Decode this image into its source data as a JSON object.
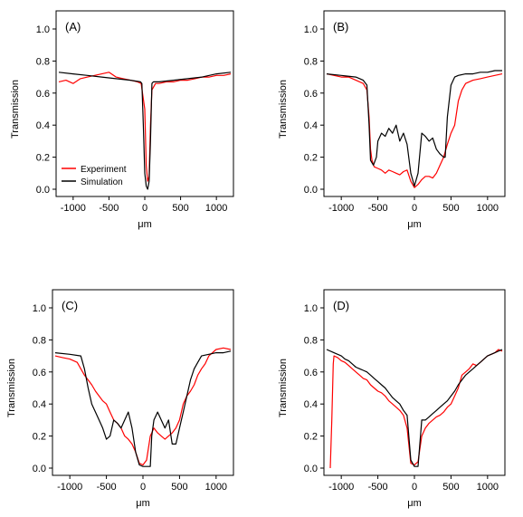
{
  "colors": {
    "experiment": "#ff0000",
    "simulation": "#000000",
    "axis": "#000000",
    "background": "#ffffff"
  },
  "legend": {
    "placement": "bottom-left of panel A",
    "entries": [
      "Experiment",
      "Simulation"
    ]
  },
  "chart_data": [
    {
      "type": "line",
      "panel_label": "(A)",
      "xlabel": "μm",
      "ylabel": "Transmission",
      "xlim": [
        -1200,
        1200
      ],
      "ylim": [
        0.0,
        1.0
      ],
      "xticks": [
        -1000,
        -500,
        0,
        500,
        1000
      ],
      "yticks": [
        0.0,
        0.2,
        0.4,
        0.6,
        0.8,
        1.0
      ],
      "xtick_labels": [
        "-1000",
        "-500",
        "0",
        "500",
        "1000"
      ],
      "ytick_labels": [
        "0.0",
        "0.2",
        "0.4",
        "0.6",
        "0.8",
        "1.0"
      ],
      "grid": false,
      "series": [
        {
          "name": "Experiment",
          "color": "#ff0000",
          "x": [
            -1200,
            -1100,
            -1000,
            -900,
            -800,
            -700,
            -600,
            -500,
            -400,
            -300,
            -200,
            -100,
            -50,
            0,
            20,
            40,
            60,
            80,
            100,
            150,
            200,
            300,
            400,
            500,
            600,
            700,
            800,
            900,
            1000,
            1100,
            1200
          ],
          "y": [
            0.67,
            0.68,
            0.66,
            0.69,
            0.7,
            0.71,
            0.72,
            0.73,
            0.7,
            0.69,
            0.68,
            0.67,
            0.66,
            0.5,
            0.15,
            0.05,
            0.08,
            0.4,
            0.62,
            0.66,
            0.66,
            0.67,
            0.67,
            0.68,
            0.68,
            0.69,
            0.7,
            0.7,
            0.71,
            0.71,
            0.72
          ]
        },
        {
          "name": "Simulation",
          "color": "#000000",
          "x": [
            -1200,
            -1000,
            -800,
            -600,
            -400,
            -200,
            -60,
            -40,
            -20,
            0,
            20,
            40,
            60,
            80,
            100,
            120,
            200,
            400,
            600,
            800,
            1000,
            1200
          ],
          "y": [
            0.73,
            0.72,
            0.71,
            0.7,
            0.69,
            0.68,
            0.67,
            0.66,
            0.4,
            0.1,
            0.02,
            0.0,
            0.05,
            0.3,
            0.66,
            0.67,
            0.67,
            0.68,
            0.69,
            0.7,
            0.72,
            0.73
          ]
        }
      ]
    },
    {
      "type": "line",
      "panel_label": "(B)",
      "xlabel": "μm",
      "ylabel": "Transmission",
      "xlim": [
        -1200,
        1200
      ],
      "ylim": [
        0.0,
        1.0
      ],
      "xticks": [
        -1000,
        -500,
        0,
        500,
        1000
      ],
      "yticks": [
        0.0,
        0.2,
        0.4,
        0.6,
        0.8,
        1.0
      ],
      "xtick_labels": [
        "-1000",
        "-500",
        "0",
        "500",
        "1000"
      ],
      "ytick_labels": [
        "0.0",
        "0.2",
        "0.4",
        "0.6",
        "0.8",
        "1.0"
      ],
      "grid": false,
      "series": [
        {
          "name": "Experiment",
          "color": "#ff0000",
          "x": [
            -1200,
            -1100,
            -1000,
            -900,
            -800,
            -700,
            -650,
            -620,
            -600,
            -580,
            -550,
            -500,
            -450,
            -400,
            -350,
            -300,
            -250,
            -200,
            -150,
            -100,
            -50,
            0,
            50,
            100,
            150,
            200,
            250,
            300,
            350,
            400,
            450,
            500,
            550,
            600,
            650,
            700,
            800,
            900,
            1000,
            1100,
            1200
          ],
          "y": [
            0.72,
            0.71,
            0.7,
            0.7,
            0.68,
            0.66,
            0.62,
            0.45,
            0.25,
            0.18,
            0.14,
            0.13,
            0.12,
            0.1,
            0.12,
            0.11,
            0.1,
            0.09,
            0.11,
            0.12,
            0.05,
            0.01,
            0.03,
            0.06,
            0.08,
            0.08,
            0.07,
            0.1,
            0.15,
            0.2,
            0.28,
            0.35,
            0.4,
            0.55,
            0.62,
            0.66,
            0.68,
            0.69,
            0.7,
            0.71,
            0.72
          ]
        },
        {
          "name": "Simulation",
          "color": "#000000",
          "x": [
            -1200,
            -1000,
            -800,
            -700,
            -650,
            -620,
            -600,
            -560,
            -520,
            -500,
            -450,
            -400,
            -350,
            -300,
            -250,
            -200,
            -150,
            -100,
            -50,
            0,
            50,
            100,
            150,
            200,
            250,
            300,
            350,
            400,
            420,
            450,
            500,
            550,
            600,
            700,
            800,
            900,
            1000,
            1100,
            1200
          ],
          "y": [
            0.72,
            0.71,
            0.7,
            0.68,
            0.65,
            0.4,
            0.18,
            0.15,
            0.2,
            0.3,
            0.35,
            0.33,
            0.38,
            0.35,
            0.4,
            0.3,
            0.35,
            0.28,
            0.1,
            0.02,
            0.1,
            0.35,
            0.33,
            0.3,
            0.32,
            0.25,
            0.22,
            0.2,
            0.2,
            0.45,
            0.65,
            0.7,
            0.71,
            0.72,
            0.72,
            0.73,
            0.73,
            0.74,
            0.74
          ]
        }
      ]
    },
    {
      "type": "line",
      "panel_label": "(C)",
      "xlabel": "μm",
      "ylabel": "Transmission",
      "xlim": [
        -1200,
        1200
      ],
      "ylim": [
        0.0,
        1.0
      ],
      "xticks": [
        -1000,
        -500,
        0,
        500,
        1000
      ],
      "yticks": [
        0.0,
        0.2,
        0.4,
        0.6,
        0.8,
        1.0
      ],
      "xtick_labels": [
        "-1000",
        "-500",
        "0",
        "500",
        "1000"
      ],
      "ytick_labels": [
        "0.0",
        "0.2",
        "0.4",
        "0.6",
        "0.8",
        "1.0"
      ],
      "grid": false,
      "series": [
        {
          "name": "Experiment",
          "color": "#ff0000",
          "x": [
            -1200,
            -1100,
            -1000,
            -900,
            -850,
            -800,
            -750,
            -700,
            -650,
            -600,
            -550,
            -500,
            -450,
            -400,
            -350,
            -300,
            -250,
            -200,
            -150,
            -100,
            -50,
            0,
            50,
            100,
            150,
            200,
            250,
            300,
            350,
            400,
            450,
            500,
            550,
            600,
            650,
            700,
            750,
            800,
            850,
            900,
            950,
            1000,
            1100,
            1200
          ],
          "y": [
            0.7,
            0.69,
            0.68,
            0.66,
            0.62,
            0.58,
            0.55,
            0.52,
            0.48,
            0.45,
            0.42,
            0.4,
            0.35,
            0.3,
            0.28,
            0.25,
            0.2,
            0.18,
            0.15,
            0.1,
            0.03,
            0.02,
            0.05,
            0.2,
            0.25,
            0.22,
            0.2,
            0.18,
            0.2,
            0.22,
            0.25,
            0.3,
            0.4,
            0.45,
            0.48,
            0.52,
            0.58,
            0.62,
            0.65,
            0.7,
            0.72,
            0.74,
            0.75,
            0.74
          ]
        },
        {
          "name": "Simulation",
          "color": "#000000",
          "x": [
            -1200,
            -1000,
            -850,
            -800,
            -750,
            -700,
            -650,
            -600,
            -550,
            -500,
            -450,
            -400,
            -350,
            -300,
            -250,
            -200,
            -150,
            -100,
            -50,
            0,
            50,
            100,
            120,
            150,
            200,
            250,
            300,
            350,
            400,
            450,
            500,
            550,
            600,
            650,
            700,
            750,
            800,
            900,
            1000,
            1100,
            1200
          ],
          "y": [
            0.72,
            0.71,
            0.7,
            0.62,
            0.5,
            0.4,
            0.35,
            0.3,
            0.25,
            0.18,
            0.2,
            0.3,
            0.28,
            0.25,
            0.3,
            0.35,
            0.25,
            0.1,
            0.02,
            0.01,
            0.01,
            0.01,
            0.2,
            0.3,
            0.35,
            0.3,
            0.25,
            0.3,
            0.15,
            0.15,
            0.25,
            0.35,
            0.45,
            0.55,
            0.62,
            0.66,
            0.7,
            0.71,
            0.72,
            0.72,
            0.73
          ]
        }
      ]
    },
    {
      "type": "line",
      "panel_label": "(D)",
      "xlabel": "μm",
      "ylabel": "Transmission",
      "xlim": [
        -1200,
        1200
      ],
      "ylim": [
        0.0,
        1.0
      ],
      "xticks": [
        -1000,
        -500,
        0,
        500,
        1000
      ],
      "yticks": [
        0.0,
        0.2,
        0.4,
        0.6,
        0.8,
        1.0
      ],
      "xtick_labels": [
        "-1000",
        "-500",
        "0",
        "500",
        "1000"
      ],
      "ytick_labels": [
        "0.0",
        "0.2",
        "0.4",
        "0.6",
        "0.8",
        "1.0"
      ],
      "grid": false,
      "series": [
        {
          "name": "Experiment",
          "color": "#ff0000",
          "x": [
            -1150,
            -1130,
            -1110,
            -1100,
            -1050,
            -1000,
            -950,
            -900,
            -850,
            -800,
            -750,
            -700,
            -650,
            -600,
            -550,
            -500,
            -450,
            -400,
            -350,
            -300,
            -250,
            -200,
            -150,
            -100,
            -50,
            0,
            50,
            100,
            150,
            200,
            250,
            300,
            350,
            400,
            450,
            500,
            550,
            600,
            650,
            700,
            750,
            800,
            850,
            900,
            950,
            1000,
            1050,
            1100,
            1150,
            1200
          ],
          "y": [
            0.0,
            0.3,
            0.65,
            0.7,
            0.69,
            0.67,
            0.66,
            0.64,
            0.62,
            0.6,
            0.58,
            0.56,
            0.55,
            0.52,
            0.5,
            0.48,
            0.47,
            0.45,
            0.42,
            0.4,
            0.38,
            0.36,
            0.33,
            0.25,
            0.03,
            0.02,
            0.04,
            0.2,
            0.25,
            0.28,
            0.3,
            0.32,
            0.33,
            0.35,
            0.38,
            0.4,
            0.45,
            0.5,
            0.58,
            0.6,
            0.62,
            0.65,
            0.64,
            0.66,
            0.68,
            0.7,
            0.71,
            0.72,
            0.74,
            0.73
          ]
        },
        {
          "name": "Simulation",
          "color": "#000000",
          "x": [
            -1200,
            -1100,
            -1000,
            -950,
            -900,
            -850,
            -800,
            -750,
            -700,
            -650,
            -600,
            -550,
            -500,
            -450,
            -400,
            -350,
            -300,
            -250,
            -200,
            -150,
            -100,
            -50,
            0,
            50,
            100,
            150,
            200,
            250,
            300,
            350,
            400,
            450,
            500,
            550,
            600,
            650,
            700,
            750,
            800,
            850,
            900,
            950,
            1000,
            1100,
            1200
          ],
          "y": [
            0.74,
            0.72,
            0.7,
            0.68,
            0.67,
            0.65,
            0.63,
            0.62,
            0.61,
            0.6,
            0.58,
            0.56,
            0.54,
            0.52,
            0.5,
            0.47,
            0.44,
            0.42,
            0.4,
            0.36,
            0.33,
            0.05,
            0.01,
            0.01,
            0.3,
            0.3,
            0.32,
            0.34,
            0.36,
            0.38,
            0.4,
            0.42,
            0.45,
            0.48,
            0.52,
            0.55,
            0.58,
            0.6,
            0.62,
            0.64,
            0.66,
            0.68,
            0.7,
            0.72,
            0.74
          ]
        }
      ]
    }
  ]
}
